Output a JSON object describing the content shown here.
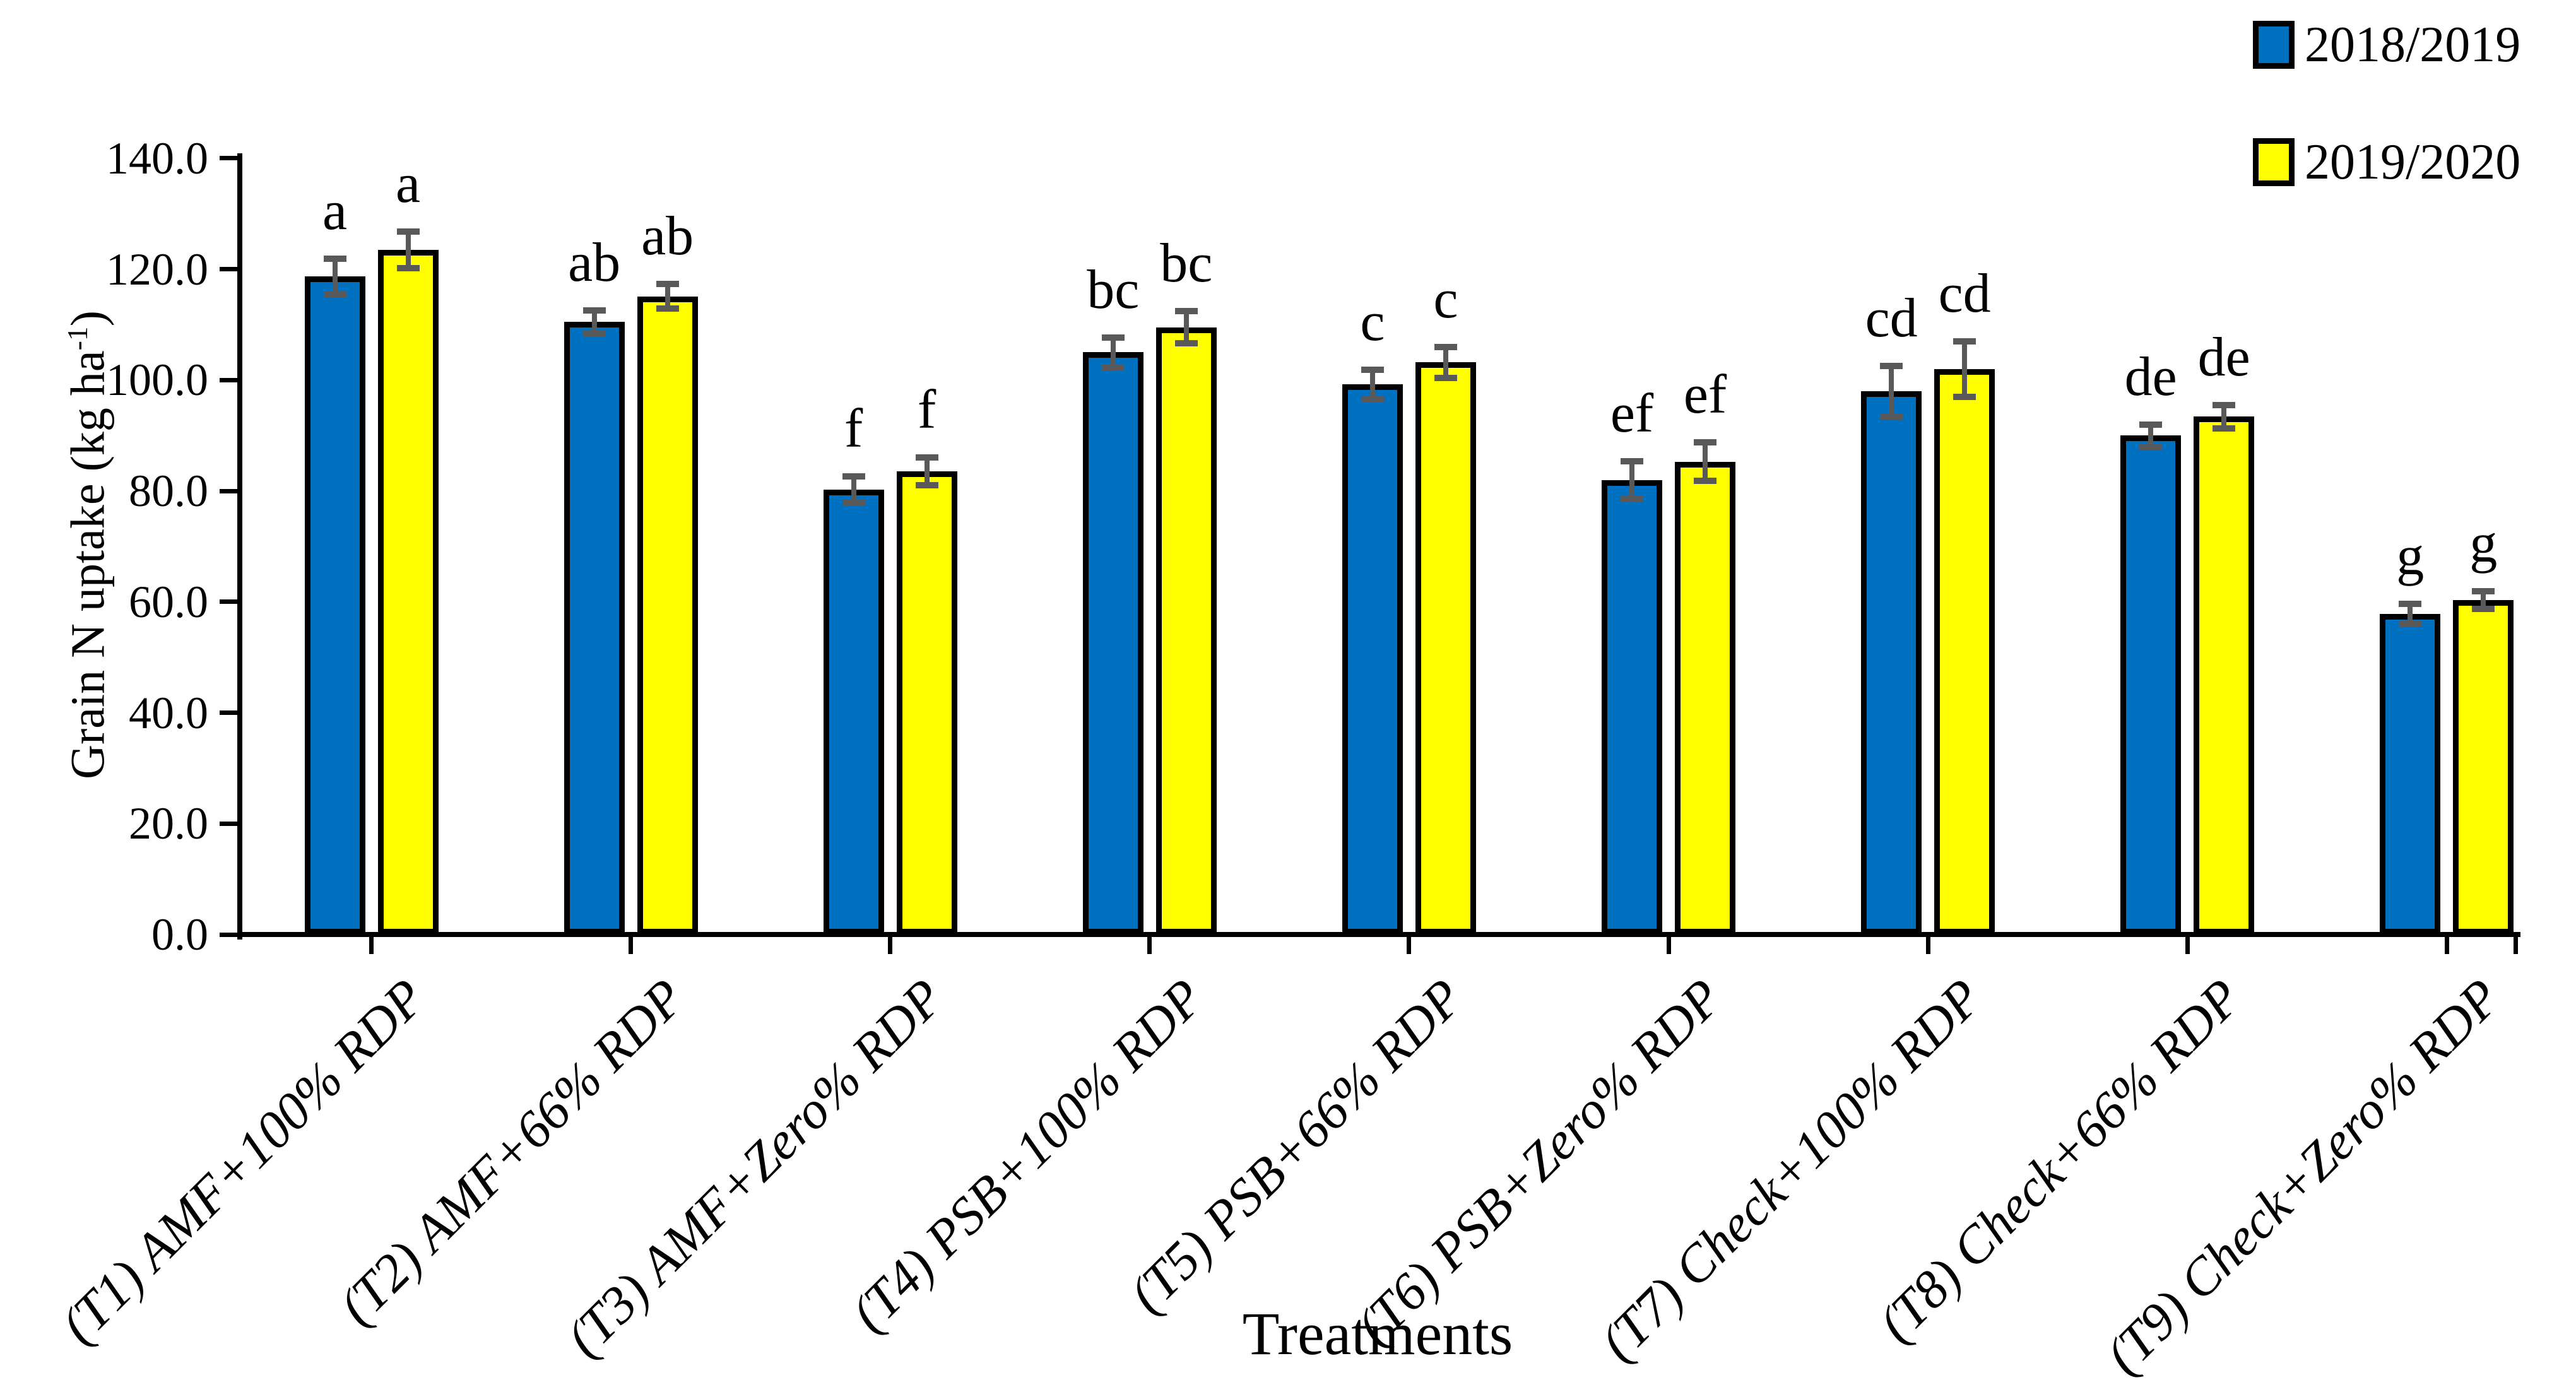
{
  "figure": {
    "background": "#FFFFFF",
    "axis_color": "#000000"
  },
  "chart_data": {
    "type": "bar",
    "title": "",
    "xlabel": "Treatments",
    "ylabel": "Grain N uptake (kg ha-1)",
    "ylabel_parts": {
      "prefix": "Grain N uptake (kg ha",
      "superscript": "-1",
      "suffix": ")"
    },
    "ylim": [
      0,
      140
    ],
    "ytick_step": 20,
    "ytick_labels": [
      "0.0",
      "20.0",
      "40.0",
      "60.0",
      "80.0",
      "100.0",
      "120.0",
      "140.0"
    ],
    "grid": false,
    "legend_position": "top-right",
    "categories": [
      "(T1) AMF+100% RDP",
      "(T2) AMF+66% RDP",
      "(T3) AMF+Zero% RDP",
      "(T4) PSB+100% RDP",
      "(T5) PSB+66% RDP",
      "(T6) PSB+Zero% RDP",
      "(T7) Check+100% RDP",
      "(T8) Check+66% RDP",
      "(T9) Check+Zero% RDP"
    ],
    "series": [
      {
        "name": "2018/2019",
        "color": "#0070C0",
        "values": [
          118.7,
          110.5,
          80.2,
          105.0,
          99.2,
          82.0,
          98.0,
          90.0,
          57.8
        ],
        "errors": [
          3.2,
          2.1,
          2.4,
          2.7,
          2.7,
          3.4,
          4.6,
          2.0,
          1.8
        ],
        "letters": [
          "a",
          "ab",
          "f",
          "bc",
          "c",
          "ef",
          "cd",
          "de",
          "g"
        ]
      },
      {
        "name": "2019/2020",
        "color": "#FFFF00",
        "values": [
          123.5,
          115.1,
          83.5,
          109.5,
          103.2,
          85.3,
          102.0,
          93.4,
          60.3
        ],
        "errors": [
          3.3,
          2.2,
          2.5,
          2.9,
          2.8,
          3.5,
          5.0,
          2.1,
          1.6
        ],
        "letters": [
          "a",
          "ab",
          "f",
          "bc",
          "c",
          "ef",
          "cd",
          "de",
          "g"
        ]
      }
    ],
    "error_bar_color": "#595959",
    "bar_border_color": "#000000"
  }
}
